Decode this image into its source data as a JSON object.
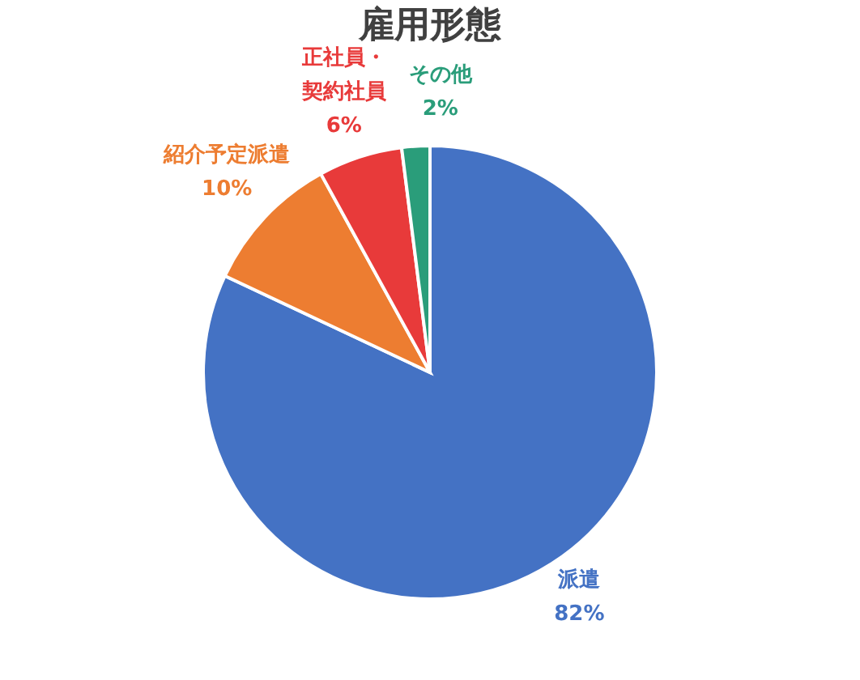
{
  "chart_data": {
    "type": "pie",
    "title": "雇用形態",
    "categories": [
      "派遣",
      "紹介予定派遣",
      "正社員・契約社員",
      "その他"
    ],
    "values": [
      82,
      10,
      6,
      2
    ],
    "value_labels": [
      "82%",
      "10%",
      "6%",
      "2%"
    ],
    "colors": [
      "#4472c4",
      "#ed7d31",
      "#e83a3a",
      "#2a9d7a"
    ],
    "legend": false
  }
}
